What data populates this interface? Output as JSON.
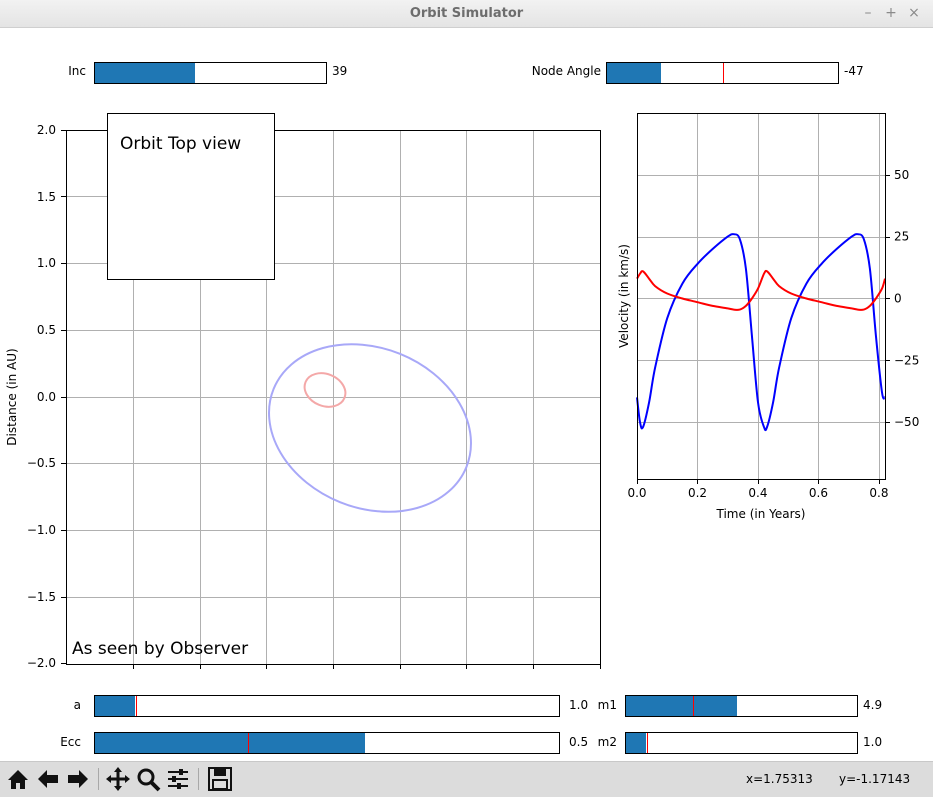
{
  "window": {
    "title": "Orbit Simulator",
    "buttons": [
      "–",
      "+",
      "×"
    ]
  },
  "sliders": {
    "inc": {
      "label": "Inc",
      "value": "39",
      "fraction": 0.435
    },
    "node_angle": {
      "label": "Node Angle",
      "value": "-47",
      "fraction": 0.235,
      "initial_fraction": 0.5
    },
    "a": {
      "label": "a",
      "value": "1.0",
      "fraction": 0.086,
      "initial_fraction": 0.088
    },
    "ecc": {
      "label": "Ecc",
      "value": "0.5",
      "fraction": 0.582,
      "initial_fraction": 0.33
    },
    "m1": {
      "label": "m1",
      "value": "4.9",
      "fraction": 0.48,
      "initial_fraction": 0.29
    },
    "m2": {
      "label": "m2",
      "value": "1.0",
      "fraction": 0.086,
      "initial_fraction": 0.09
    }
  },
  "orbit_panel": {
    "inset_title": "Orbit Top view",
    "caption": "As seen by Observer",
    "ylabel": "Distance (in AU)",
    "yticks": [
      "2.0",
      "1.5",
      "1.0",
      "0.5",
      "0.0",
      "−0.5",
      "−1.0",
      "−1.5",
      "−2.0"
    ],
    "colors": {
      "large_orbit": "#a8a8f8",
      "small_orbit": "#f4a8a8"
    }
  },
  "chart_data": {
    "type": "line",
    "xlabel": "Time (in Years)",
    "ylabel": "Velocity (in km/s)",
    "xlim": [
      0,
      0.82
    ],
    "ylim": [
      -73,
      75
    ],
    "grid": true,
    "xticks": [
      "0.0",
      "0.2",
      "0.4",
      "0.6",
      "0.8"
    ],
    "yticks": [
      "50",
      "25",
      "0",
      "−25",
      "−50"
    ],
    "series": [
      {
        "color": "#0000ff",
        "x": [
          0,
          0.01,
          0.02,
          0.04,
          0.06,
          0.1,
          0.15,
          0.2,
          0.25,
          0.3,
          0.32,
          0.34,
          0.36,
          0.38,
          0.4,
          0.42,
          0.43,
          0.45,
          0.47,
          0.51,
          0.56,
          0.61,
          0.66,
          0.71,
          0.73,
          0.75,
          0.77,
          0.79,
          0.81,
          0.82
        ],
        "y": [
          -40,
          -50,
          -52,
          -42,
          -28,
          -8,
          6,
          14,
          20,
          25,
          26,
          24,
          12,
          -15,
          -42,
          -52,
          -52,
          -42,
          -28,
          -8,
          6,
          14,
          20,
          25,
          26,
          24,
          12,
          -15,
          -38,
          -40
        ]
      },
      {
        "color": "#ff0000",
        "x": [
          0,
          0.01,
          0.02,
          0.04,
          0.06,
          0.1,
          0.15,
          0.2,
          0.25,
          0.3,
          0.32,
          0.34,
          0.36,
          0.38,
          0.4,
          0.42,
          0.43,
          0.45,
          0.47,
          0.51,
          0.56,
          0.61,
          0.66,
          0.71,
          0.73,
          0.75,
          0.77,
          0.79,
          0.81,
          0.82
        ],
        "y": [
          8,
          10,
          11,
          8,
          5,
          2,
          0,
          -1.5,
          -3,
          -4,
          -4.5,
          -4.5,
          -3,
          0,
          4,
          10,
          11,
          8,
          5,
          2,
          0,
          -1.5,
          -3,
          -4,
          -4.5,
          -4.5,
          -3,
          0,
          4,
          8
        ]
      }
    ]
  },
  "toolbar": {
    "buttons": [
      "home-icon",
      "back-icon",
      "forward-icon",
      "pan-icon",
      "zoom-icon",
      "configure-icon",
      "save-icon"
    ],
    "x_readout": "x=1.75313",
    "y_readout": "y=-1.17143"
  }
}
